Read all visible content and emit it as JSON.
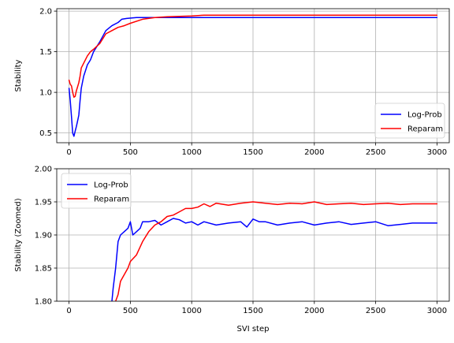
{
  "chart_data": [
    {
      "type": "line",
      "xlabel": "",
      "ylabel": "Stability",
      "xlim": [
        -100,
        3100
      ],
      "ylim": [
        0.38,
        2.03
      ],
      "xticks": [
        0,
        500,
        1000,
        1500,
        2000,
        2500,
        3000
      ],
      "xtick_labels": [
        "0",
        "500",
        "1000",
        "1500",
        "2000",
        "2500",
        "3000"
      ],
      "yticks": [
        0.5,
        1.0,
        1.5,
        2.0
      ],
      "ytick_labels": [
        "0.5",
        "1.0",
        "1.5",
        "2.0"
      ],
      "grid": true,
      "legend": "lower-right",
      "series": [
        {
          "name": "Log-Prob",
          "color": "#0000ff",
          "x": [
            0,
            10,
            20,
            30,
            40,
            50,
            60,
            70,
            80,
            90,
            100,
            120,
            150,
            175,
            200,
            250,
            300,
            350,
            400,
            430,
            470,
            550,
            600,
            700,
            800,
            900,
            1000,
            1200,
            1500,
            2000,
            2500,
            3000
          ],
          "y": [
            1.05,
            0.9,
            0.7,
            0.5,
            0.46,
            0.52,
            0.58,
            0.65,
            0.72,
            0.9,
            1.05,
            1.2,
            1.34,
            1.4,
            1.5,
            1.62,
            1.76,
            1.82,
            1.86,
            1.9,
            1.91,
            1.92,
            1.92,
            1.92,
            1.92,
            1.92,
            1.92,
            1.92,
            1.92,
            1.92,
            1.92,
            1.92
          ]
        },
        {
          "name": "Reparam",
          "color": "#ff0000",
          "x": [
            0,
            10,
            20,
            30,
            40,
            50,
            60,
            70,
            80,
            90,
            100,
            150,
            175,
            200,
            250,
            300,
            350,
            400,
            450,
            500,
            600,
            700,
            800,
            1000,
            1100,
            1200,
            1500,
            2000,
            2500,
            3000
          ],
          "y": [
            1.15,
            1.1,
            1.08,
            1.0,
            0.94,
            0.95,
            1.02,
            1.07,
            1.12,
            1.2,
            1.3,
            1.45,
            1.5,
            1.53,
            1.6,
            1.72,
            1.76,
            1.8,
            1.82,
            1.85,
            1.9,
            1.92,
            1.93,
            1.94,
            1.95,
            1.95,
            1.95,
            1.95,
            1.95,
            1.95
          ]
        }
      ]
    },
    {
      "type": "line",
      "xlabel": "SVI step",
      "ylabel": "Stability (Zoomed)",
      "xlim": [
        -100,
        3100
      ],
      "ylim": [
        1.8,
        2.0
      ],
      "xticks": [
        0,
        500,
        1000,
        1500,
        2000,
        2500,
        3000
      ],
      "xtick_labels": [
        "0",
        "500",
        "1000",
        "1500",
        "2000",
        "2500",
        "3000"
      ],
      "yticks": [
        1.8,
        1.85,
        1.9,
        1.95,
        2.0
      ],
      "ytick_labels": [
        "1.80",
        "1.85",
        "1.90",
        "1.95",
        "2.00"
      ],
      "grid": true,
      "legend": "upper-left",
      "series": [
        {
          "name": "Log-Prob",
          "color": "#0000ff",
          "x": [
            350,
            360,
            380,
            400,
            420,
            450,
            480,
            500,
            520,
            550,
            580,
            600,
            650,
            700,
            750,
            800,
            850,
            900,
            950,
            1000,
            1050,
            1100,
            1200,
            1300,
            1400,
            1450,
            1500,
            1550,
            1600,
            1700,
            1800,
            1900,
            2000,
            2100,
            2200,
            2300,
            2400,
            2500,
            2600,
            2700,
            2800,
            2900,
            3000
          ],
          "y": [
            1.8,
            1.82,
            1.85,
            1.89,
            1.9,
            1.905,
            1.91,
            1.92,
            1.9,
            1.905,
            1.91,
            1.92,
            1.92,
            1.922,
            1.915,
            1.92,
            1.925,
            1.923,
            1.918,
            1.92,
            1.915,
            1.92,
            1.915,
            1.918,
            1.92,
            1.912,
            1.924,
            1.92,
            1.92,
            1.915,
            1.918,
            1.92,
            1.915,
            1.918,
            1.92,
            1.916,
            1.918,
            1.92,
            1.914,
            1.916,
            1.918,
            1.918,
            1.918
          ]
        },
        {
          "name": "Reparam",
          "color": "#ff0000",
          "x": [
            380,
            400,
            420,
            450,
            480,
            500,
            550,
            600,
            650,
            700,
            750,
            800,
            850,
            900,
            950,
            1000,
            1050,
            1100,
            1150,
            1200,
            1300,
            1400,
            1500,
            1600,
            1700,
            1800,
            1900,
            2000,
            2100,
            2200,
            2300,
            2400,
            2500,
            2600,
            2700,
            2800,
            2900,
            3000
          ],
          "y": [
            1.8,
            1.81,
            1.83,
            1.84,
            1.85,
            1.86,
            1.87,
            1.89,
            1.905,
            1.915,
            1.92,
            1.928,
            1.93,
            1.935,
            1.94,
            1.94,
            1.942,
            1.947,
            1.943,
            1.948,
            1.945,
            1.948,
            1.95,
            1.948,
            1.946,
            1.948,
            1.947,
            1.95,
            1.946,
            1.947,
            1.948,
            1.946,
            1.947,
            1.948,
            1.946,
            1.947,
            1.947,
            1.947
          ]
        }
      ]
    }
  ]
}
